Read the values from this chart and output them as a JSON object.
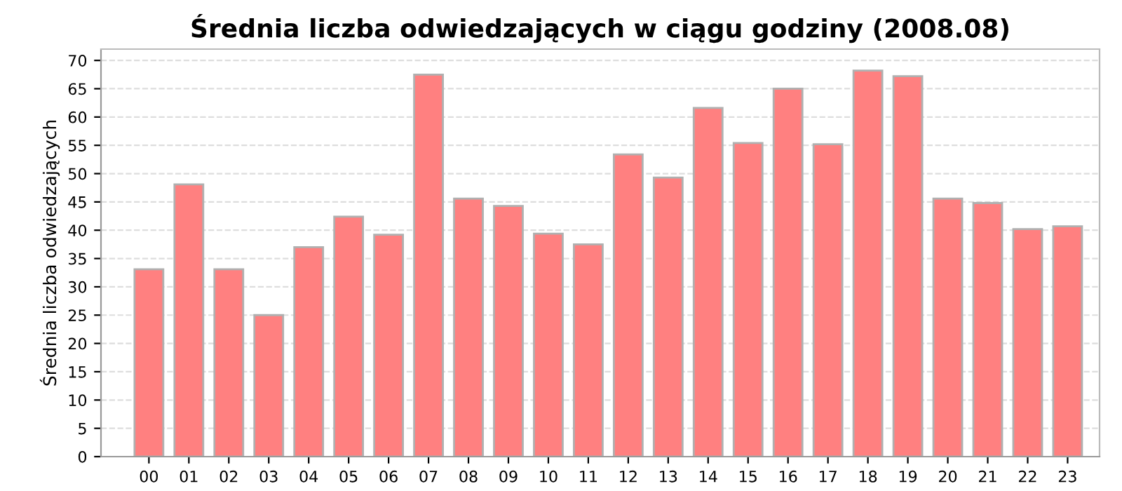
{
  "chart_data": {
    "type": "bar",
    "title": "Średnia liczba odwiedzających w ciągu godziny (2008.08)",
    "ylabel": "Średnia liczba odwiedzających",
    "categories": [
      "00",
      "01",
      "02",
      "03",
      "04",
      "05",
      "06",
      "07",
      "08",
      "09",
      "10",
      "11",
      "12",
      "13",
      "14",
      "15",
      "16",
      "17",
      "18",
      "19",
      "20",
      "21",
      "22",
      "23"
    ],
    "values": [
      33.1,
      48.1,
      33.1,
      25.0,
      37.0,
      42.4,
      39.2,
      67.5,
      45.6,
      44.3,
      39.4,
      37.5,
      53.4,
      49.3,
      61.6,
      55.4,
      65.0,
      55.2,
      68.2,
      67.2,
      45.6,
      44.8,
      40.2,
      40.7
    ],
    "color": "#ff8080",
    "ylim": [
      0,
      72
    ],
    "yticks": [
      0,
      5,
      10,
      15,
      20,
      25,
      30,
      35,
      40,
      45,
      50,
      55,
      60,
      65,
      70
    ],
    "grid": "y",
    "legend": false
  }
}
